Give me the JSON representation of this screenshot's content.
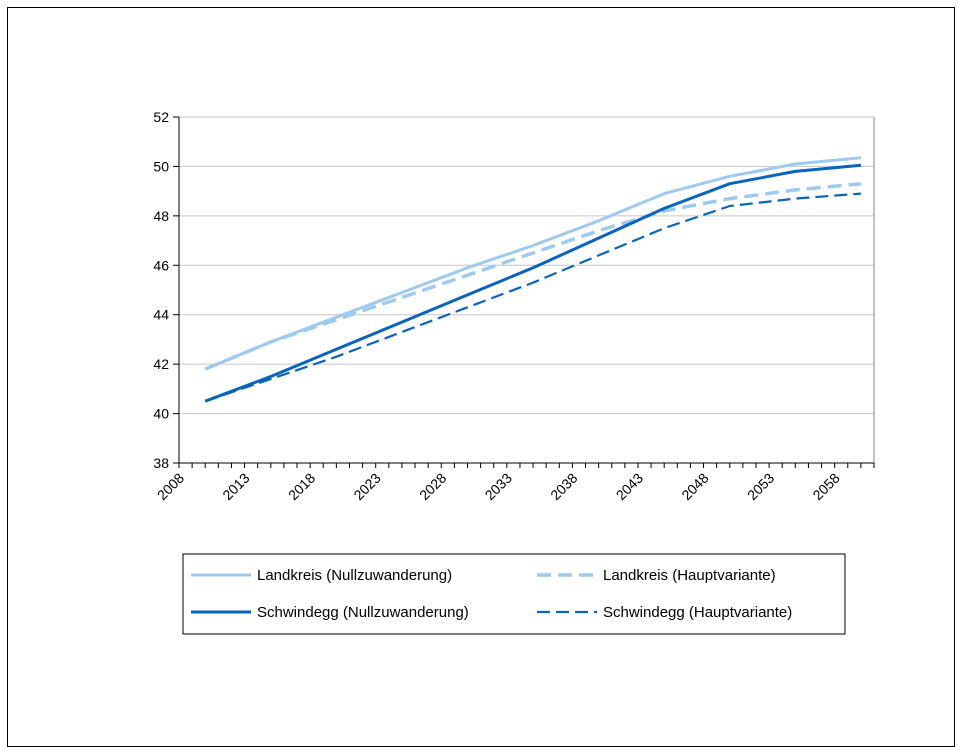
{
  "chart_data": {
    "type": "line",
    "x": [
      2010,
      2015,
      2020,
      2025,
      2030,
      2035,
      2040,
      2045,
      2050,
      2055,
      2060
    ],
    "xticks": [
      2008,
      2013,
      2018,
      2023,
      2028,
      2033,
      2038,
      2043,
      2048,
      2053,
      2058
    ],
    "xlim": [
      2008,
      2061
    ],
    "ylim": [
      38,
      52
    ],
    "yticks": [
      38,
      40,
      42,
      44,
      46,
      48,
      50,
      52
    ],
    "grid": "horizontal",
    "legend_position": "bottom",
    "series": [
      {
        "name": "Landkreis (Nullzuwanderung)",
        "color": "#9ec9f0",
        "style": "solid",
        "values": [
          41.8,
          42.9,
          43.9,
          44.9,
          45.9,
          46.8,
          47.8,
          48.9,
          49.6,
          50.1,
          50.35
        ]
      },
      {
        "name": "Landkreis (Hauptvariante)",
        "color": "#9ec9f0",
        "style": "dashed",
        "values": [
          41.8,
          42.9,
          43.8,
          44.7,
          45.6,
          46.5,
          47.4,
          48.2,
          48.7,
          49.05,
          49.3
        ]
      },
      {
        "name": "Schwindegg (Nullzuwanderung)",
        "color": "#0a64bd",
        "style": "solid",
        "values": [
          40.5,
          41.5,
          42.6,
          43.7,
          44.8,
          45.9,
          47.1,
          48.3,
          49.3,
          49.8,
          50.05
        ]
      },
      {
        "name": "Schwindegg (Hauptvariante)",
        "color": "#0a64bd",
        "style": "dashed",
        "values": [
          40.5,
          41.4,
          42.3,
          43.3,
          44.3,
          45.3,
          46.4,
          47.5,
          48.4,
          48.7,
          48.9
        ]
      }
    ]
  }
}
